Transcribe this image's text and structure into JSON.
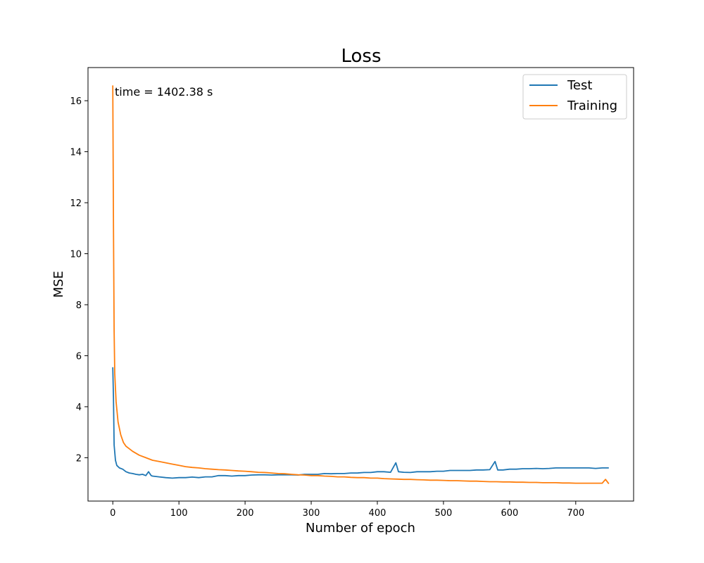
{
  "chart_data": {
    "type": "line",
    "title": "Loss",
    "xlabel": "Number of epoch",
    "ylabel": "MSE",
    "xlim": [
      -37.5,
      787.5
    ],
    "ylim": [
      0.3,
      17.3
    ],
    "xticks": [
      0,
      100,
      200,
      300,
      400,
      500,
      600,
      700
    ],
    "yticks": [
      2,
      4,
      6,
      8,
      10,
      12,
      14,
      16
    ],
    "grid": false,
    "legend": {
      "placement": "top-right"
    },
    "annotation": {
      "text": "time = 1402.38 s",
      "x": 3,
      "y": 16.2
    },
    "series": [
      {
        "name": "Test",
        "color": "#1f77b4",
        "points": [
          [
            0,
            5.55
          ],
          [
            1,
            4.3
          ],
          [
            2,
            2.5
          ],
          [
            4,
            1.9
          ],
          [
            6,
            1.7
          ],
          [
            10,
            1.6
          ],
          [
            15,
            1.55
          ],
          [
            20,
            1.45
          ],
          [
            25,
            1.4
          ],
          [
            30,
            1.38
          ],
          [
            35,
            1.35
          ],
          [
            40,
            1.33
          ],
          [
            45,
            1.35
          ],
          [
            50,
            1.3
          ],
          [
            54,
            1.45
          ],
          [
            58,
            1.3
          ],
          [
            60,
            1.28
          ],
          [
            70,
            1.25
          ],
          [
            80,
            1.22
          ],
          [
            90,
            1.2
          ],
          [
            100,
            1.22
          ],
          [
            110,
            1.22
          ],
          [
            120,
            1.24
          ],
          [
            130,
            1.22
          ],
          [
            140,
            1.25
          ],
          [
            150,
            1.25
          ],
          [
            160,
            1.3
          ],
          [
            170,
            1.3
          ],
          [
            180,
            1.28
          ],
          [
            190,
            1.3
          ],
          [
            200,
            1.3
          ],
          [
            210,
            1.32
          ],
          [
            220,
            1.33
          ],
          [
            230,
            1.33
          ],
          [
            240,
            1.32
          ],
          [
            250,
            1.33
          ],
          [
            260,
            1.33
          ],
          [
            270,
            1.33
          ],
          [
            280,
            1.32
          ],
          [
            290,
            1.35
          ],
          [
            300,
            1.35
          ],
          [
            310,
            1.35
          ],
          [
            320,
            1.38
          ],
          [
            330,
            1.37
          ],
          [
            340,
            1.38
          ],
          [
            350,
            1.38
          ],
          [
            360,
            1.4
          ],
          [
            370,
            1.4
          ],
          [
            380,
            1.42
          ],
          [
            390,
            1.42
          ],
          [
            400,
            1.45
          ],
          [
            410,
            1.45
          ],
          [
            420,
            1.43
          ],
          [
            428,
            1.8
          ],
          [
            432,
            1.45
          ],
          [
            440,
            1.43
          ],
          [
            450,
            1.42
          ],
          [
            460,
            1.45
          ],
          [
            470,
            1.45
          ],
          [
            480,
            1.45
          ],
          [
            490,
            1.47
          ],
          [
            500,
            1.47
          ],
          [
            510,
            1.5
          ],
          [
            520,
            1.5
          ],
          [
            530,
            1.5
          ],
          [
            540,
            1.5
          ],
          [
            550,
            1.52
          ],
          [
            560,
            1.52
          ],
          [
            570,
            1.53
          ],
          [
            578,
            1.85
          ],
          [
            582,
            1.52
          ],
          [
            590,
            1.52
          ],
          [
            600,
            1.55
          ],
          [
            610,
            1.55
          ],
          [
            620,
            1.57
          ],
          [
            630,
            1.57
          ],
          [
            640,
            1.58
          ],
          [
            650,
            1.57
          ],
          [
            660,
            1.58
          ],
          [
            670,
            1.6
          ],
          [
            680,
            1.6
          ],
          [
            690,
            1.6
          ],
          [
            700,
            1.6
          ],
          [
            710,
            1.6
          ],
          [
            720,
            1.6
          ],
          [
            730,
            1.58
          ],
          [
            740,
            1.6
          ],
          [
            750,
            1.6
          ]
        ]
      },
      {
        "name": "Training",
        "color": "#ff7f0e",
        "points": [
          [
            0,
            16.6
          ],
          [
            1,
            11.0
          ],
          [
            2,
            7.0
          ],
          [
            3,
            5.3
          ],
          [
            5,
            4.2
          ],
          [
            8,
            3.4
          ],
          [
            12,
            2.9
          ],
          [
            16,
            2.6
          ],
          [
            20,
            2.45
          ],
          [
            25,
            2.35
          ],
          [
            30,
            2.25
          ],
          [
            40,
            2.1
          ],
          [
            50,
            2.0
          ],
          [
            60,
            1.9
          ],
          [
            70,
            1.85
          ],
          [
            80,
            1.8
          ],
          [
            90,
            1.75
          ],
          [
            100,
            1.7
          ],
          [
            110,
            1.65
          ],
          [
            120,
            1.62
          ],
          [
            130,
            1.6
          ],
          [
            140,
            1.57
          ],
          [
            150,
            1.55
          ],
          [
            160,
            1.53
          ],
          [
            170,
            1.52
          ],
          [
            180,
            1.5
          ],
          [
            190,
            1.48
          ],
          [
            200,
            1.47
          ],
          [
            210,
            1.45
          ],
          [
            220,
            1.43
          ],
          [
            230,
            1.42
          ],
          [
            240,
            1.4
          ],
          [
            250,
            1.38
          ],
          [
            260,
            1.37
          ],
          [
            270,
            1.35
          ],
          [
            280,
            1.33
          ],
          [
            290,
            1.32
          ],
          [
            300,
            1.3
          ],
          [
            310,
            1.3
          ],
          [
            320,
            1.28
          ],
          [
            330,
            1.27
          ],
          [
            340,
            1.25
          ],
          [
            350,
            1.25
          ],
          [
            360,
            1.23
          ],
          [
            370,
            1.22
          ],
          [
            380,
            1.22
          ],
          [
            390,
            1.2
          ],
          [
            400,
            1.2
          ],
          [
            410,
            1.18
          ],
          [
            420,
            1.17
          ],
          [
            430,
            1.16
          ],
          [
            440,
            1.15
          ],
          [
            450,
            1.15
          ],
          [
            460,
            1.14
          ],
          [
            470,
            1.13
          ],
          [
            480,
            1.12
          ],
          [
            490,
            1.12
          ],
          [
            500,
            1.11
          ],
          [
            510,
            1.1
          ],
          [
            520,
            1.1
          ],
          [
            530,
            1.09
          ],
          [
            540,
            1.08
          ],
          [
            550,
            1.08
          ],
          [
            560,
            1.07
          ],
          [
            570,
            1.06
          ],
          [
            580,
            1.06
          ],
          [
            590,
            1.05
          ],
          [
            600,
            1.05
          ],
          [
            610,
            1.04
          ],
          [
            620,
            1.04
          ],
          [
            630,
            1.03
          ],
          [
            640,
            1.03
          ],
          [
            650,
            1.02
          ],
          [
            660,
            1.02
          ],
          [
            670,
            1.02
          ],
          [
            680,
            1.01
          ],
          [
            690,
            1.01
          ],
          [
            700,
            1.0
          ],
          [
            710,
            1.0
          ],
          [
            720,
            1.0
          ],
          [
            730,
            1.0
          ],
          [
            740,
            1.0
          ],
          [
            745,
            1.15
          ],
          [
            750,
            0.98
          ]
        ]
      }
    ]
  }
}
